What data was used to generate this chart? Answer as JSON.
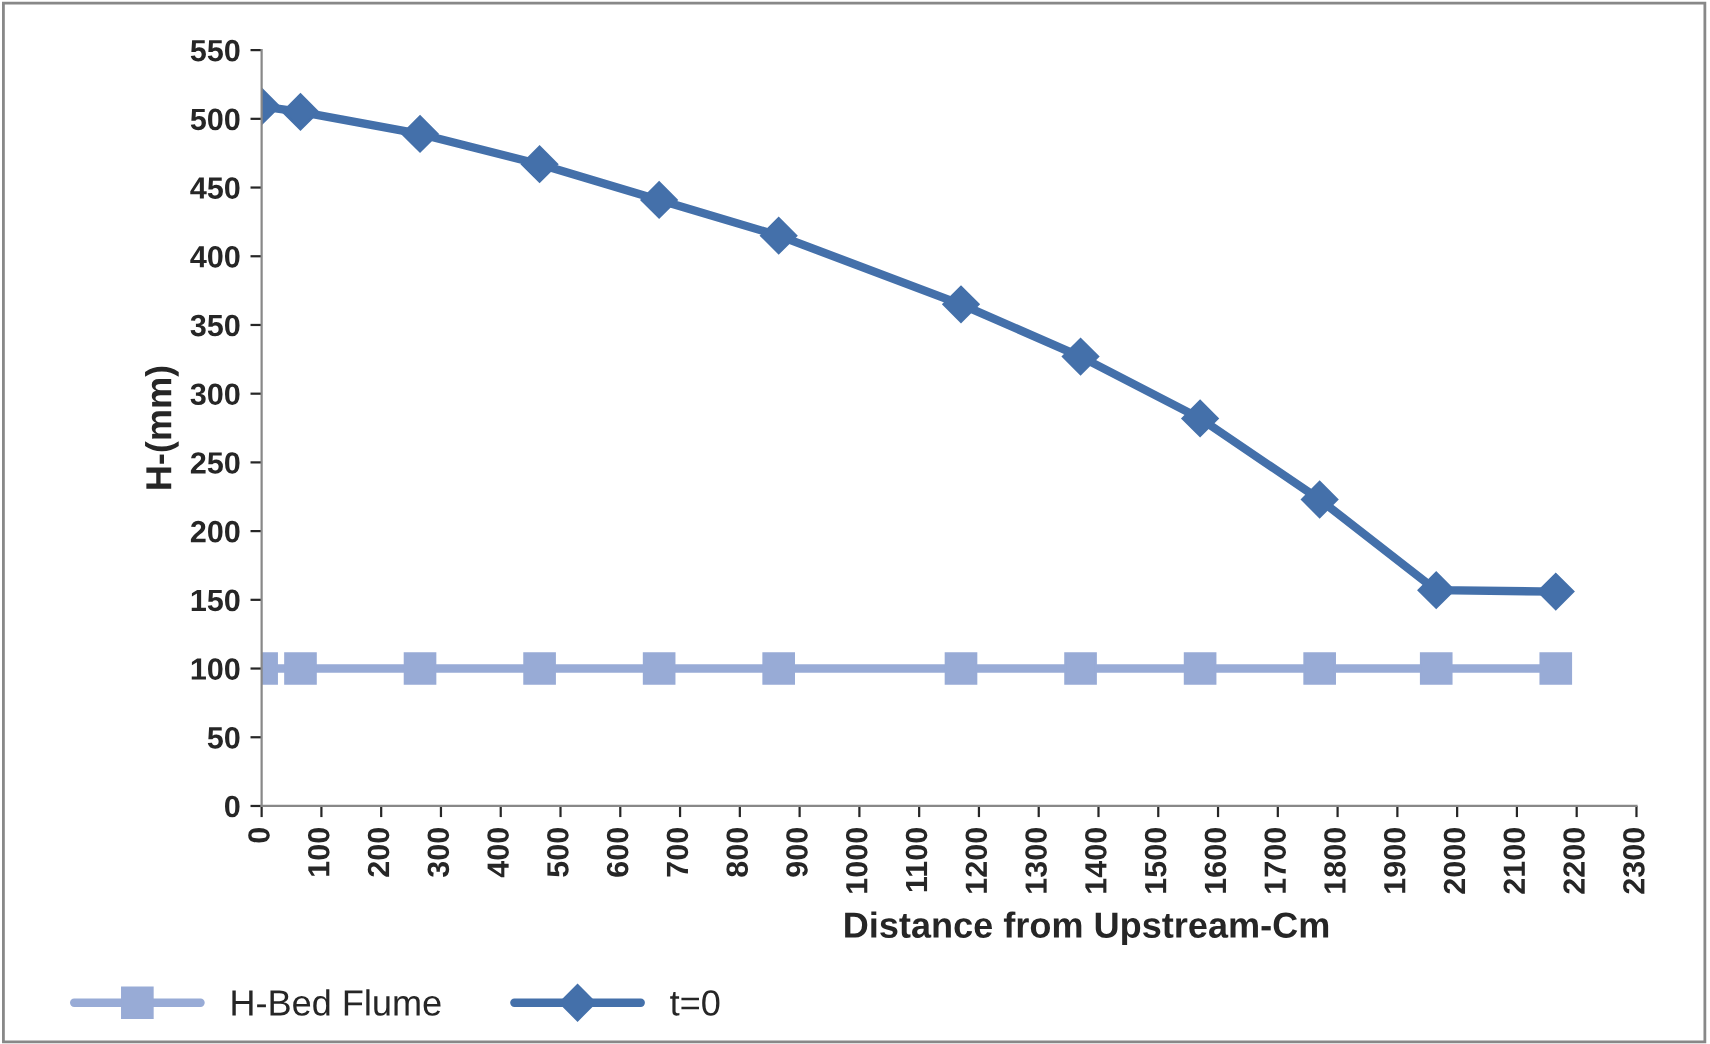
{
  "chart_data": {
    "type": "line",
    "xlabel": "Distance from Upstream-Cm",
    "ylabel": "H-(mm)",
    "x": [
      0,
      65,
      265,
      465,
      665,
      865,
      1170,
      1370,
      1570,
      1770,
      1965,
      2165
    ],
    "series": [
      {
        "name": "H-Bed Flume",
        "color": "#98abd6",
        "marker": "square",
        "values": [
          100,
          100,
          100,
          100,
          100,
          100,
          100,
          100,
          100,
          100,
          100,
          100
        ]
      },
      {
        "name": "t=0",
        "color": "#4470aa",
        "marker": "diamond",
        "values": [
          509,
          505,
          489,
          467,
          441,
          415,
          365,
          327,
          282,
          223,
          157,
          156
        ]
      }
    ],
    "xlim": [
      0,
      2300
    ],
    "xticks": [
      0,
      100,
      200,
      300,
      400,
      500,
      600,
      700,
      800,
      900,
      1000,
      1100,
      1200,
      1300,
      1400,
      1500,
      1600,
      1700,
      1800,
      1900,
      2000,
      2100,
      2200,
      2300
    ],
    "ylim": [
      0,
      550
    ],
    "yticks": [
      0,
      50,
      100,
      150,
      200,
      250,
      300,
      350,
      400,
      450,
      500,
      550
    ],
    "grid": false,
    "legend": "bottom left",
    "line_style": "solid"
  }
}
